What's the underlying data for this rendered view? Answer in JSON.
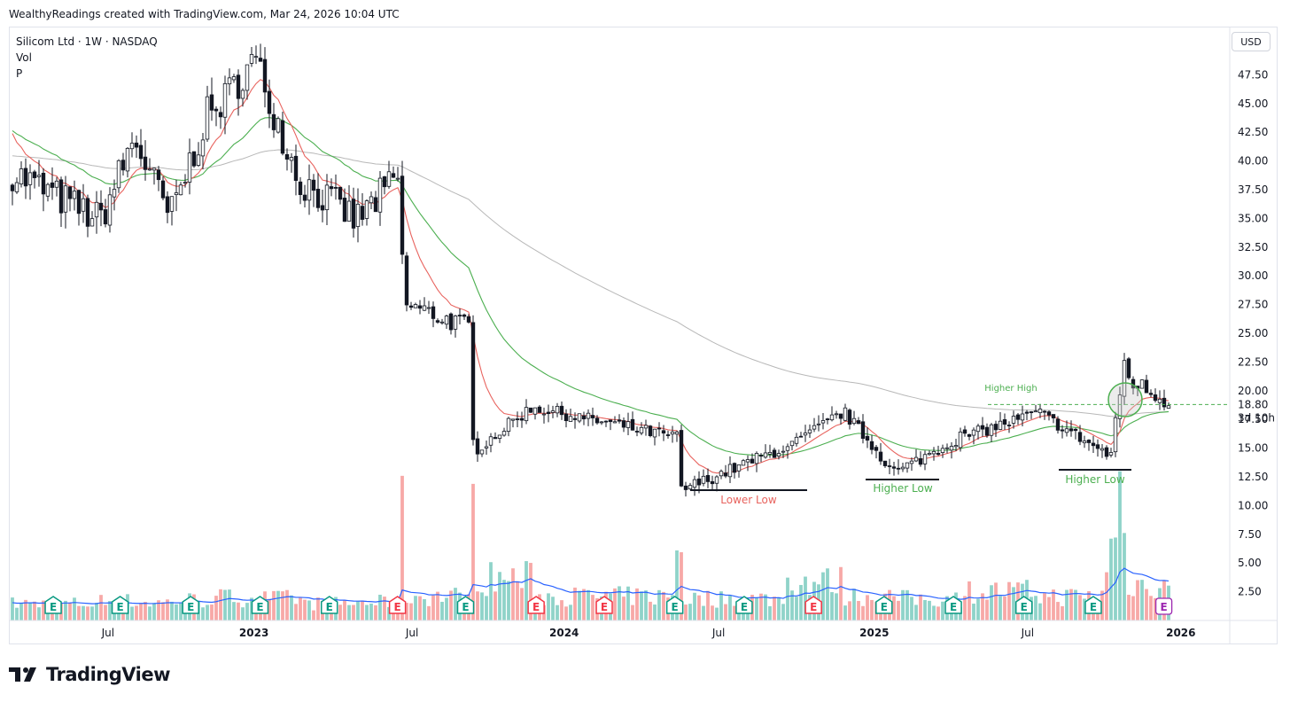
{
  "caption": "WealthyReadings created with TradingView.com, Mar 24, 2026 10:04 UTC",
  "legend": {
    "title": "Silicom Ltd · 1W · NASDAQ",
    "line2": "Vol",
    "line3": "P"
  },
  "currency": "USD",
  "brand": "TradingView",
  "colors": {
    "up": "#ffffff",
    "down": "#131722",
    "ma_short": "#e8635e",
    "ma_mid": "#4caf50",
    "ma_long": "#b8b8b8",
    "vol_up": "#8fd3c9",
    "vol_down": "#f7a9a7",
    "vol_ma": "#2962ff",
    "earn_green": "#089981",
    "earn_red": "#f23645"
  },
  "chart_data": {
    "type": "candlestick",
    "interval": "1W",
    "ylim": [
      0,
      50
    ],
    "y_ticks": [
      2.5,
      5,
      7.5,
      10,
      12.5,
      15,
      17.5,
      20,
      22.5,
      25,
      27.5,
      30,
      32.5,
      35,
      37.5,
      40,
      42.5,
      45,
      47.5
    ],
    "y_tick_labels": [
      "2.50",
      "5.00",
      "7.50",
      "10.00",
      "12.50",
      "15.00",
      "17.50",
      "20.00",
      "22.50",
      "25.00",
      "27.50",
      "30.00",
      "32.50",
      "35.00",
      "37.50",
      "40.00",
      "42.50",
      "45.00",
      "47.50"
    ],
    "x_ticks": [
      {
        "label": "Jul",
        "t": 0.08
      },
      {
        "label": "2023",
        "t": 0.2
      },
      {
        "label": "Jul",
        "t": 0.33
      },
      {
        "label": "2024",
        "t": 0.455
      },
      {
        "label": "Jul",
        "t": 0.582
      },
      {
        "label": "2025",
        "t": 0.71
      },
      {
        "label": "Jul",
        "t": 0.836
      },
      {
        "label": "2026",
        "t": 0.962
      }
    ],
    "current_price": "18.80",
    "countdown": "3d 10h",
    "annotations": [
      {
        "text": "Lower Low",
        "kind": "low",
        "color": "#e8635e"
      },
      {
        "text": "Higher Low",
        "kind": "low",
        "color": "#4caf50"
      },
      {
        "text": "Higher Low",
        "kind": "low",
        "color": "#4caf50"
      },
      {
        "text": "Higher High",
        "kind": "high",
        "color": "#4caf50"
      }
    ],
    "segments": [
      {
        "from": 0,
        "to": 20,
        "start": 39.0,
        "end": 35.0,
        "vol": 1.4
      },
      {
        "from": 20,
        "to": 28,
        "start": 35.0,
        "end": 41.5,
        "vol": 1.6
      },
      {
        "from": 28,
        "to": 36,
        "start": 41.5,
        "end": 35.5,
        "vol": 1.5
      },
      {
        "from": 36,
        "to": 45,
        "start": 35.5,
        "end": 44.0,
        "vol": 1.7
      },
      {
        "from": 45,
        "to": 55,
        "start": 44.0,
        "end": 48.5,
        "vol": 1.9
      },
      {
        "from": 55,
        "to": 66,
        "start": 48.5,
        "end": 38.0,
        "vol": 1.8
      },
      {
        "from": 66,
        "to": 78,
        "start": 38.0,
        "end": 35.0,
        "vol": 1.4
      },
      {
        "from": 78,
        "to": 88,
        "start": 35.0,
        "end": 38.5,
        "vol": 1.5
      },
      {
        "from": 88,
        "to": 89,
        "start": 38.5,
        "end": 31.0,
        "vol": 12.5
      },
      {
        "from": 89,
        "to": 104,
        "start": 27.5,
        "end": 25.5,
        "vol": 2.0
      },
      {
        "from": 104,
        "to": 105,
        "start": 25.5,
        "end": 15.5,
        "vol": 11.8
      },
      {
        "from": 105,
        "to": 118,
        "start": 15.0,
        "end": 18.5,
        "vol": 3.5
      },
      {
        "from": 118,
        "to": 150,
        "start": 18.5,
        "end": 16.0,
        "vol": 2.0
      },
      {
        "from": 150,
        "to": 152,
        "start": 16.0,
        "end": 11.5,
        "vol": 6.0
      },
      {
        "from": 152,
        "to": 175,
        "start": 11.5,
        "end": 15.0,
        "vol": 1.8
      },
      {
        "from": 175,
        "to": 188,
        "start": 15.0,
        "end": 18.0,
        "vol": 3.2
      },
      {
        "from": 188,
        "to": 200,
        "start": 18.0,
        "end": 13.0,
        "vol": 2.0
      },
      {
        "from": 200,
        "to": 215,
        "start": 13.0,
        "end": 16.0,
        "vol": 1.8
      },
      {
        "from": 215,
        "to": 232,
        "start": 16.0,
        "end": 18.0,
        "vol": 2.4
      },
      {
        "from": 232,
        "to": 248,
        "start": 18.0,
        "end": 14.5,
        "vol": 2.0
      },
      {
        "from": 248,
        "to": 252,
        "start": 14.5,
        "end": 22.5,
        "vol": 6.5
      },
      {
        "from": 252,
        "to": 262,
        "start": 21.0,
        "end": 18.8,
        "vol": 3.0
      }
    ],
    "earnings": [
      {
        "t": 0.035,
        "type": "E",
        "color": "green"
      },
      {
        "t": 0.09,
        "type": "E",
        "color": "green"
      },
      {
        "t": 0.148,
        "type": "E",
        "color": "green"
      },
      {
        "t": 0.205,
        "type": "E",
        "color": "green"
      },
      {
        "t": 0.262,
        "type": "E",
        "color": "green"
      },
      {
        "t": 0.318,
        "type": "E",
        "color": "red"
      },
      {
        "t": 0.374,
        "type": "E",
        "color": "green"
      },
      {
        "t": 0.432,
        "type": "E",
        "color": "red"
      },
      {
        "t": 0.488,
        "type": "E",
        "color": "red"
      },
      {
        "t": 0.546,
        "type": "E",
        "color": "green"
      },
      {
        "t": 0.603,
        "type": "E",
        "color": "green"
      },
      {
        "t": 0.66,
        "type": "E",
        "color": "red"
      },
      {
        "t": 0.718,
        "type": "E",
        "color": "green"
      },
      {
        "t": 0.775,
        "type": "E",
        "color": "green"
      },
      {
        "t": 0.833,
        "type": "E",
        "color": "green"
      },
      {
        "t": 0.89,
        "type": "E",
        "color": "green"
      },
      {
        "t": 0.948,
        "type": "E",
        "color": "purple"
      }
    ]
  }
}
